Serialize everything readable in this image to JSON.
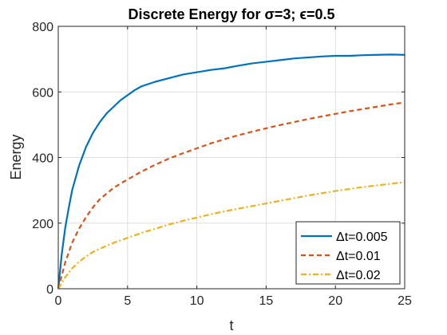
{
  "chart_data": {
    "type": "line",
    "title": "Discrete Energy for σ=3; ϵ=0.5",
    "xlabel": "t",
    "ylabel": "Energy",
    "xlim": [
      0,
      25
    ],
    "ylim": [
      0,
      800
    ],
    "xticks": [
      0,
      5,
      10,
      15,
      20,
      25
    ],
    "yticks": [
      0,
      200,
      400,
      600,
      800
    ],
    "grid": true,
    "legend_position": "bottom-right",
    "series": [
      {
        "name": "Δt=0.005",
        "color": "#0072BD",
        "dash": "solid",
        "x": [
          0,
          0.25,
          0.5,
          0.75,
          1,
          1.5,
          2,
          2.5,
          3,
          3.5,
          4,
          4.5,
          5,
          5.5,
          6,
          7,
          8,
          9,
          10,
          11,
          12,
          13,
          14,
          15,
          16,
          17,
          18,
          19,
          20,
          21,
          22,
          23,
          24,
          25
        ],
        "y": [
          0,
          105,
          185,
          245,
          300,
          375,
          432,
          475,
          508,
          535,
          555,
          575,
          590,
          605,
          617,
          631,
          642,
          653,
          660,
          667,
          672,
          680,
          687,
          692,
          697,
          702,
          705,
          708,
          710,
          710,
          712,
          713,
          714,
          713
        ]
      },
      {
        "name": "Δt=0.01",
        "color": "#D95319",
        "dash": "dashed",
        "x": [
          0,
          0.5,
          1,
          1.5,
          2,
          2.5,
          3,
          4,
          5,
          6,
          7,
          8,
          9,
          10,
          11,
          12,
          13,
          14,
          15,
          16,
          17,
          18,
          19,
          20,
          21,
          22,
          23,
          24,
          25
        ],
        "y": [
          0,
          80,
          140,
          183,
          218,
          248,
          273,
          308,
          333,
          357,
          378,
          397,
          413,
          428,
          443,
          456,
          468,
          479,
          489,
          499,
          508,
          517,
          525,
          533,
          541,
          548,
          555,
          562,
          568
        ]
      },
      {
        "name": "Δt=0.02",
        "color": "#EDB120",
        "dash": "dashdot",
        "x": [
          0,
          0.5,
          1,
          1.5,
          2,
          2.5,
          3,
          4,
          5,
          6,
          7,
          8,
          9,
          10,
          11,
          12,
          13,
          14,
          15,
          16,
          17,
          18,
          19,
          20,
          21,
          22,
          23,
          24,
          25
        ],
        "y": [
          0,
          35,
          62,
          82,
          98,
          112,
          122,
          140,
          155,
          170,
          183,
          196,
          207,
          217,
          227,
          236,
          244,
          252,
          260,
          268,
          276,
          284,
          291,
          298,
          304,
          310,
          315,
          320,
          325
        ]
      }
    ]
  }
}
